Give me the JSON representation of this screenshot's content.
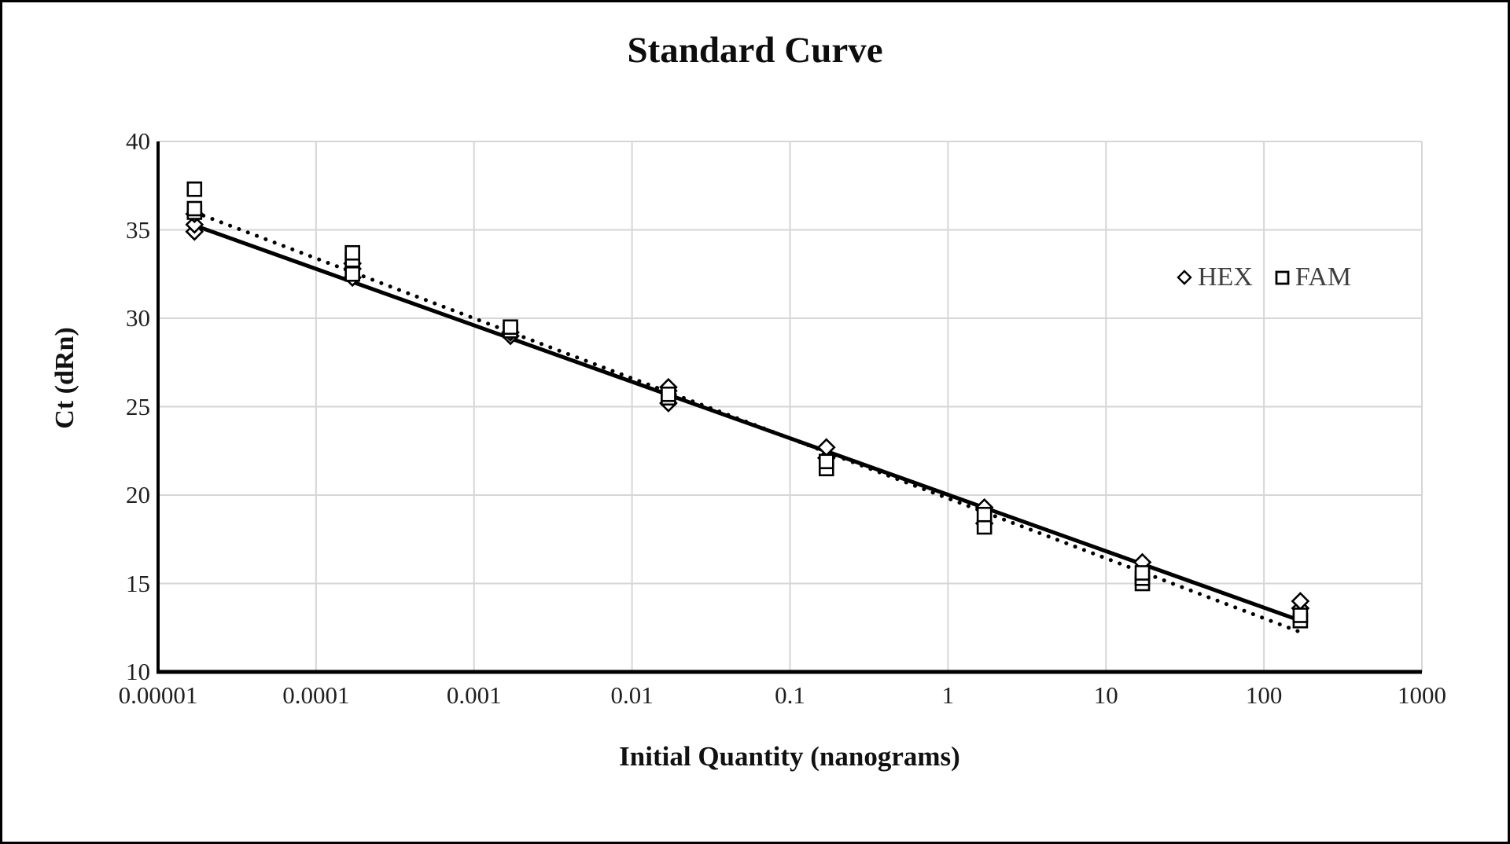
{
  "chart_data": {
    "type": "scatter",
    "title": "Standard Curve",
    "xlabel": "Initial Quantity (nanograms)",
    "ylabel": "Ct (dRn)",
    "x_scale": "log",
    "xlim": [
      1e-05,
      1000
    ],
    "ylim": [
      10,
      40
    ],
    "x_ticks": [
      "0.00001",
      "0.0001",
      "0.001",
      "0.01",
      "0.1",
      "1",
      "10",
      "100",
      "1000"
    ],
    "x_tick_values": [
      1e-05,
      0.0001,
      0.001,
      0.01,
      0.1,
      1,
      10,
      100,
      1000
    ],
    "y_ticks": [
      "10",
      "15",
      "20",
      "25",
      "30",
      "35",
      "40"
    ],
    "y_tick_values": [
      10,
      15,
      20,
      25,
      30,
      35,
      40
    ],
    "grid": true,
    "legend_position": "inside-right",
    "colors": {
      "marker_stroke": "#000000",
      "marker_fill": "#ffffff",
      "trendline": "#000000",
      "gridline": "#d6d6d6",
      "axis": "#000000",
      "tick_text": "#1f1f1f",
      "legend_text": "#3f3f3f"
    },
    "series": [
      {
        "name": "HEX",
        "marker": "diamond",
        "points": [
          [
            1.7e-05,
            34.9
          ],
          [
            1.7e-05,
            35.3
          ],
          [
            1.7e-05,
            35.9
          ],
          [
            0.00017,
            32.3
          ],
          [
            0.00017,
            32.8
          ],
          [
            0.00017,
            33.1
          ],
          [
            0.0017,
            29.0
          ],
          [
            0.0017,
            29.2
          ],
          [
            0.017,
            25.2
          ],
          [
            0.017,
            25.9
          ],
          [
            0.017,
            26.1
          ],
          [
            0.17,
            22.1
          ],
          [
            0.17,
            22.7
          ],
          [
            1.7,
            18.4
          ],
          [
            1.7,
            19.3
          ],
          [
            17,
            16.2
          ],
          [
            170,
            13.6
          ],
          [
            170,
            14.0
          ]
        ]
      },
      {
        "name": "FAM",
        "marker": "square",
        "points": [
          [
            1.7e-05,
            36.0
          ],
          [
            1.7e-05,
            36.2
          ],
          [
            1.7e-05,
            37.3
          ],
          [
            0.00017,
            32.5
          ],
          [
            0.00017,
            33.3
          ],
          [
            0.00017,
            33.7
          ],
          [
            0.0017,
            29.3
          ],
          [
            0.0017,
            29.5
          ],
          [
            0.017,
            25.5
          ],
          [
            0.017,
            25.7
          ],
          [
            0.17,
            21.5
          ],
          [
            0.17,
            21.9
          ],
          [
            1.7,
            18.2
          ],
          [
            1.7,
            18.9
          ],
          [
            17,
            15.0
          ],
          [
            17,
            15.3
          ],
          [
            17,
            15.6
          ],
          [
            170,
            12.9
          ],
          [
            170,
            13.2
          ]
        ]
      }
    ],
    "trendlines": [
      {
        "series": "HEX",
        "style": "solid",
        "points": [
          [
            1.7e-05,
            35.25
          ],
          [
            170,
            12.9
          ]
        ]
      },
      {
        "series": "FAM",
        "style": "dotted",
        "points": [
          [
            1.7e-05,
            36.0
          ],
          [
            170,
            12.25
          ]
        ]
      }
    ]
  }
}
